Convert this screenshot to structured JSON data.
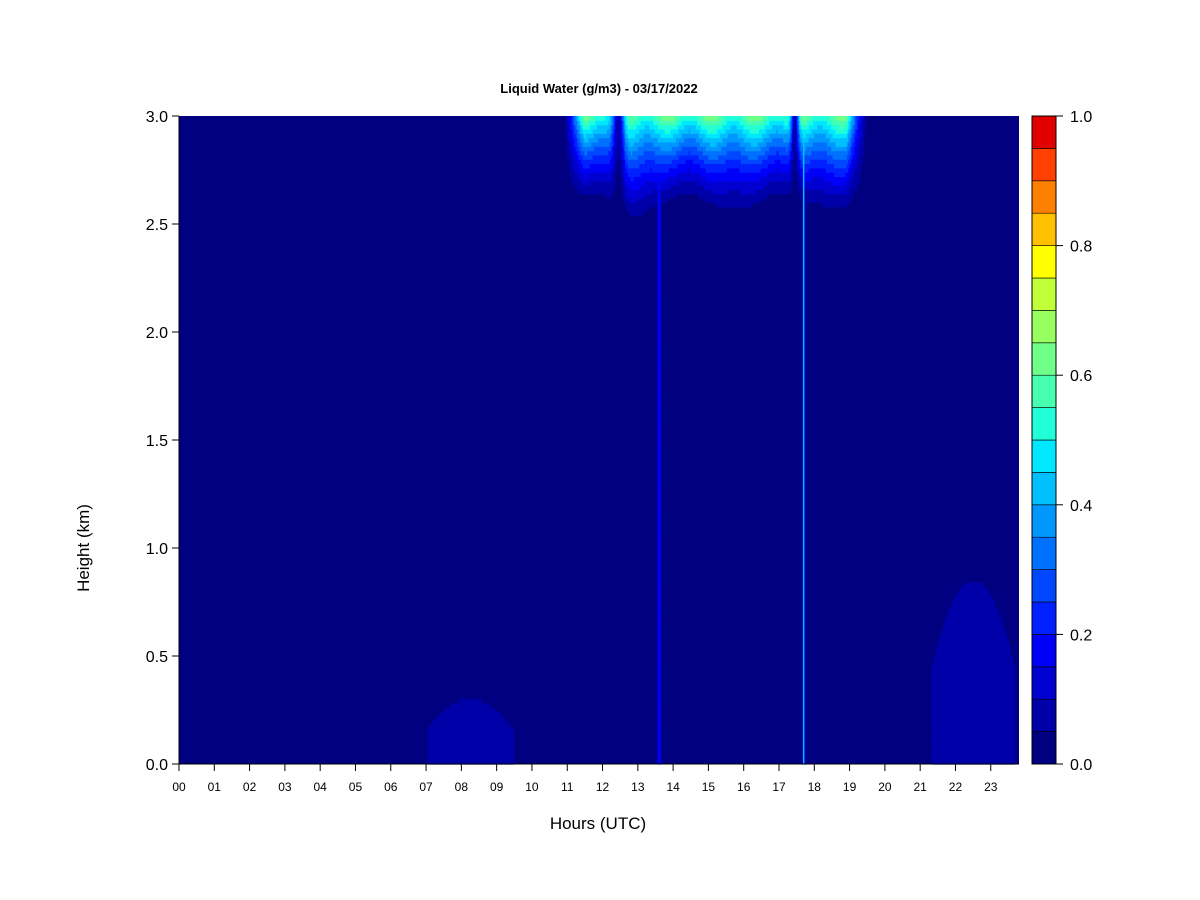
{
  "chart_data": {
    "type": "heatmap",
    "title": "Liquid Water (g/m3) - 03/17/2022",
    "xlabel": "Hours (UTC)",
    "ylabel": "Height (km)",
    "x_ticks": [
      "00",
      "01",
      "02",
      "03",
      "04",
      "05",
      "06",
      "07",
      "08",
      "09",
      "10",
      "11",
      "12",
      "13",
      "14",
      "15",
      "16",
      "17",
      "18",
      "19",
      "20",
      "21",
      "22",
      "23"
    ],
    "y_ticks": [
      "0.0",
      "0.5",
      "1.0",
      "1.5",
      "2.0",
      "2.5",
      "3.0"
    ],
    "xlim": [
      0,
      23.8
    ],
    "ylim": [
      0,
      3.0
    ],
    "colorbar": {
      "range": [
        0,
        1.0
      ],
      "ticks": [
        "0.0",
        "0.2",
        "0.4",
        "0.6",
        "0.8",
        "1.0"
      ],
      "levels": 20,
      "colors": [
        "#000080",
        "#0000a8",
        "#0000d0",
        "#0000f8",
        "#0020ff",
        "#0048ff",
        "#0070ff",
        "#0098ff",
        "#00c0ff",
        "#00e8ff",
        "#20ffd8",
        "#48ffb0",
        "#70ff88",
        "#98ff60",
        "#c0ff38",
        "#ffff00",
        "#ffc000",
        "#ff8000",
        "#ff4000",
        "#e00000",
        "#800000"
      ]
    },
    "background_value": 0.0,
    "features": [
      {
        "desc": "upper cloud layer",
        "x_start": 10.9,
        "x_end": 19.5,
        "z_base": 2.5,
        "z_top": 3.0,
        "max_value": 0.65
      },
      {
        "desc": "narrow column",
        "x": 13.6,
        "z_base": 0.0,
        "z_top": 3.0,
        "value": 0.25
      },
      {
        "desc": "narrow column",
        "x": 17.7,
        "z_base": 0.0,
        "z_top": 3.0,
        "value": 0.4
      },
      {
        "desc": "low-level patch",
        "x_start": 7.0,
        "x_end": 9.5,
        "z_base": 0.0,
        "z_top": 0.3,
        "value": 0.08
      },
      {
        "desc": "low-level patch",
        "x_start": 21.3,
        "x_end": 23.7,
        "z_base": 0.0,
        "z_top": 0.85,
        "value": 0.08
      }
    ]
  }
}
